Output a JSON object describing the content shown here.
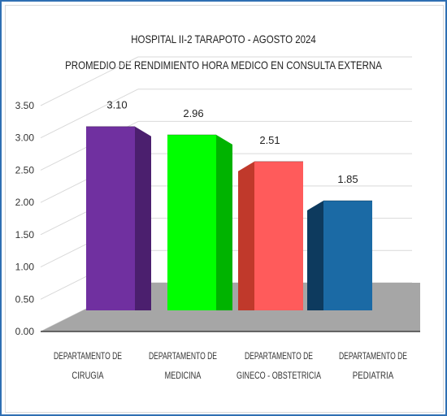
{
  "chart_data": {
    "type": "bar",
    "title": "HOSPITAL II-2 TARAPOTO - AGOSTO 2024",
    "subtitle": "PROMEDIO DE RENDIMIENTO HORA MEDICO EN CONSULTA EXTERNA",
    "categories": [
      [
        "DEPARTAMENTO DE",
        "CIRUGIA"
      ],
      [
        "DEPARTAMENTO DE",
        "MEDICINA"
      ],
      [
        "DEPARTAMENTO DE",
        "GINECO - OBSTETRICIA"
      ],
      [
        "DEPARTAMENTO DE",
        "PEDIATRIA"
      ]
    ],
    "values": [
      3.1,
      2.96,
      2.51,
      1.85
    ],
    "value_labels": [
      "3.10",
      "2.96",
      "2.51",
      "1.85"
    ],
    "colors": [
      "#7030a0",
      "#00ff00",
      "#ff5b5b",
      "#1b6aa5"
    ],
    "side_colors": [
      "#4b1f6e",
      "#00b300",
      "#c0392b",
      "#0d3a5e"
    ],
    "ylim": [
      0,
      3.5
    ],
    "yticks": [
      "0.00",
      "0.50",
      "1.00",
      "1.50",
      "2.00",
      "2.50",
      "3.00",
      "3.50"
    ],
    "xlabel": "",
    "ylabel": "",
    "grid": true,
    "three_d": true
  }
}
